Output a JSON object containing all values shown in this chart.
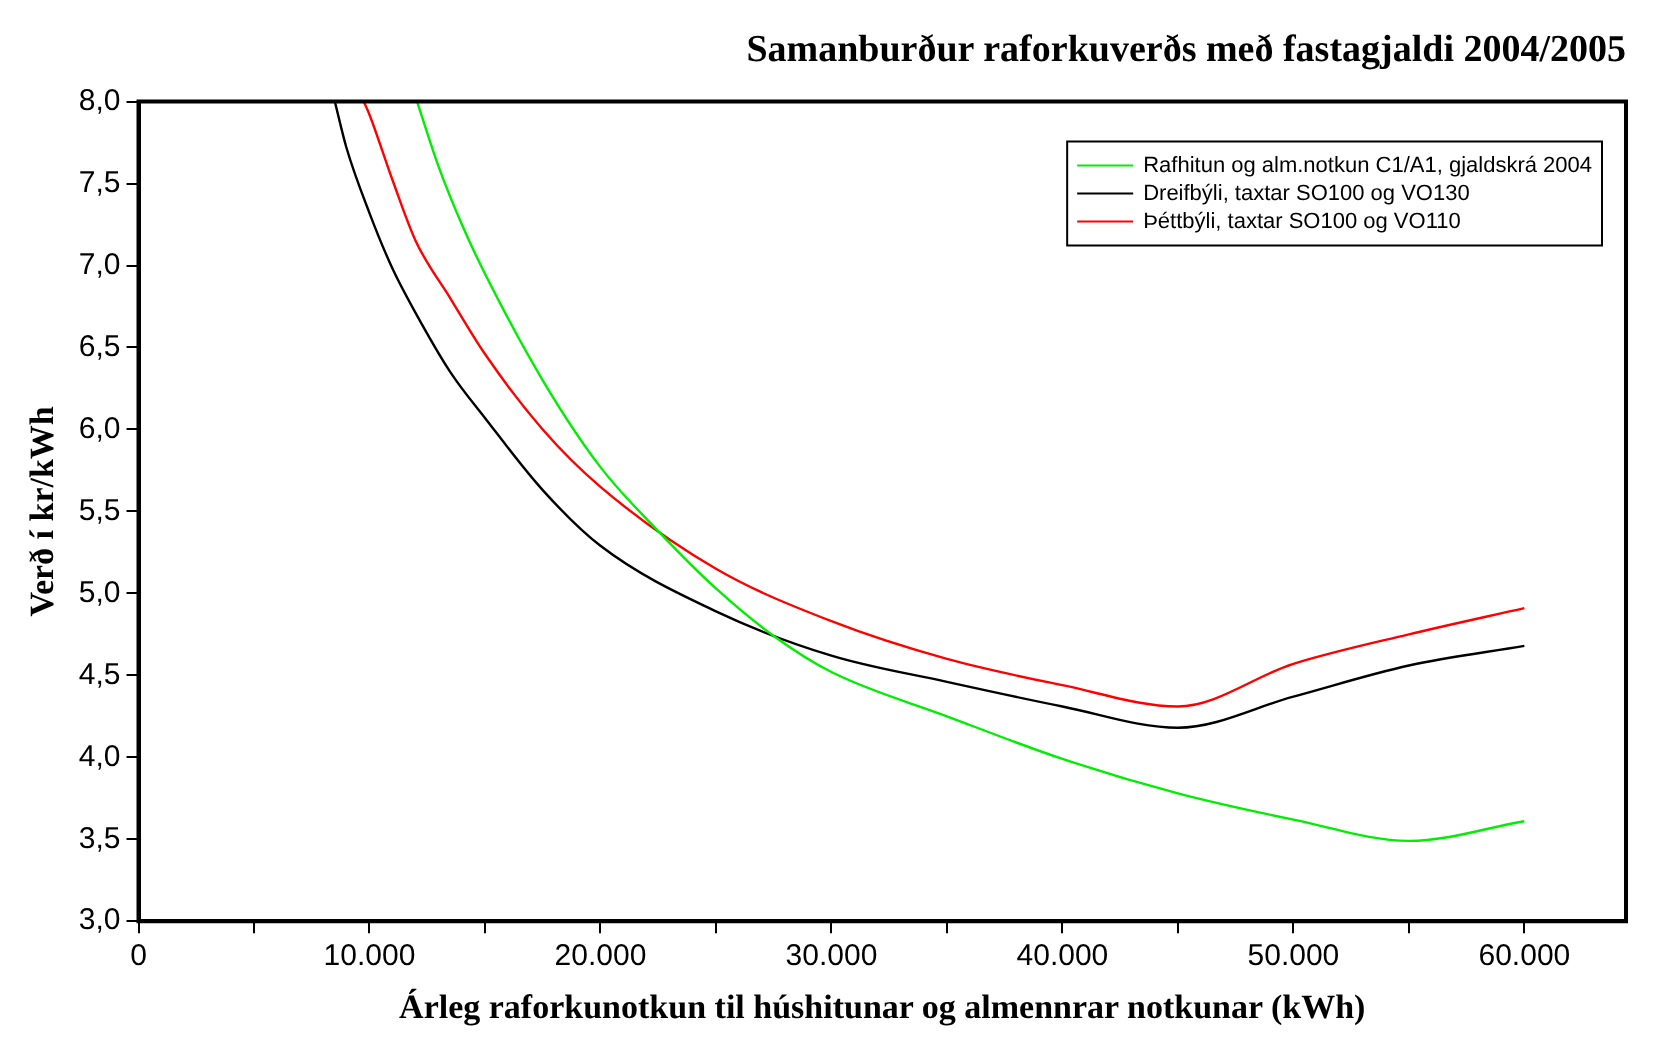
{
  "chart_data": {
    "type": "line",
    "title": "Samanburður raforkuverðs með fastagjaldi 2004/2005",
    "xlabel": "Árleg raforkunotkun til húshitunar og almennrar notkunar (kWh)",
    "ylabel": "Verð í kr/kWh",
    "xlim": [
      0,
      64400
    ],
    "ylim": [
      3,
      8
    ],
    "xticks": [
      {
        "value": 0,
        "label": "0"
      },
      {
        "value": 5000,
        "label": null
      },
      {
        "value": 10000,
        "label": "10.000"
      },
      {
        "value": 15000,
        "label": null
      },
      {
        "value": 20000,
        "label": "20.000"
      },
      {
        "value": 25000,
        "label": null
      },
      {
        "value": 30000,
        "label": "30.000"
      },
      {
        "value": 35000,
        "label": null
      },
      {
        "value": 40000,
        "label": "40.000"
      },
      {
        "value": 45000,
        "label": null
      },
      {
        "value": 50000,
        "label": "50.000"
      },
      {
        "value": 55000,
        "label": null
      },
      {
        "value": 60000,
        "label": "60.000"
      }
    ],
    "yticks": [
      {
        "value": 3,
        "label": "3,0"
      },
      {
        "value": 3.5,
        "label": "3,5"
      },
      {
        "value": 4,
        "label": "4,0"
      },
      {
        "value": 4.5,
        "label": "4,5"
      },
      {
        "value": 5,
        "label": "5,0"
      },
      {
        "value": 5.5,
        "label": "5,5"
      },
      {
        "value": 6,
        "label": "6,0"
      },
      {
        "value": 6.5,
        "label": "6,5"
      },
      {
        "value": 7,
        "label": "7,0"
      },
      {
        "value": 7.5,
        "label": "7,5"
      },
      {
        "value": 8,
        "label": "8,0"
      }
    ],
    "grid": false,
    "legend": "top right",
    "marker": "none",
    "line_style": "solid",
    "series": [
      {
        "name": "Rafhitun og alm.notkun C1/A1, gjaldskrá 2004",
        "color": "#00ee00",
        "x": [
          12060,
          13000,
          14000,
          15000,
          17500,
          20000,
          22500,
          25000,
          27500,
          30000,
          35000,
          40000,
          45000,
          50000,
          55000,
          60000
        ],
        "values": [
          8.0,
          7.6,
          7.25,
          6.95,
          6.3,
          5.77,
          5.38,
          5.03,
          4.74,
          4.52,
          4.25,
          3.99,
          3.78,
          3.62,
          3.49,
          3.61
        ]
      },
      {
        "name": "Dreifbýli, taxtar SO100 og VO130",
        "color": "#000000",
        "x": [
          8500,
          9000,
          10000,
          11000,
          12000,
          13500,
          15000,
          17500,
          20000,
          25000,
          30000,
          35000,
          40000,
          45000,
          50000,
          55000,
          60000
        ],
        "values": [
          8.0,
          7.72,
          7.32,
          6.98,
          6.71,
          6.35,
          6.07,
          5.63,
          5.29,
          4.89,
          4.62,
          4.46,
          4.31,
          4.18,
          4.37,
          4.56,
          4.68
        ]
      },
      {
        "name": "Þéttbýli, taxtar SO100 og VO110",
        "color": "#ff0000",
        "x": [
          9750,
          10000,
          11000,
          12000,
          13500,
          15000,
          17500,
          20000,
          25000,
          30000,
          35000,
          40000,
          45000,
          50000,
          55000,
          60000
        ],
        "values": [
          8.0,
          7.92,
          7.52,
          7.15,
          6.8,
          6.46,
          6.0,
          5.65,
          5.15,
          4.83,
          4.6,
          4.44,
          4.31,
          4.57,
          4.75,
          4.91
        ]
      }
    ]
  }
}
